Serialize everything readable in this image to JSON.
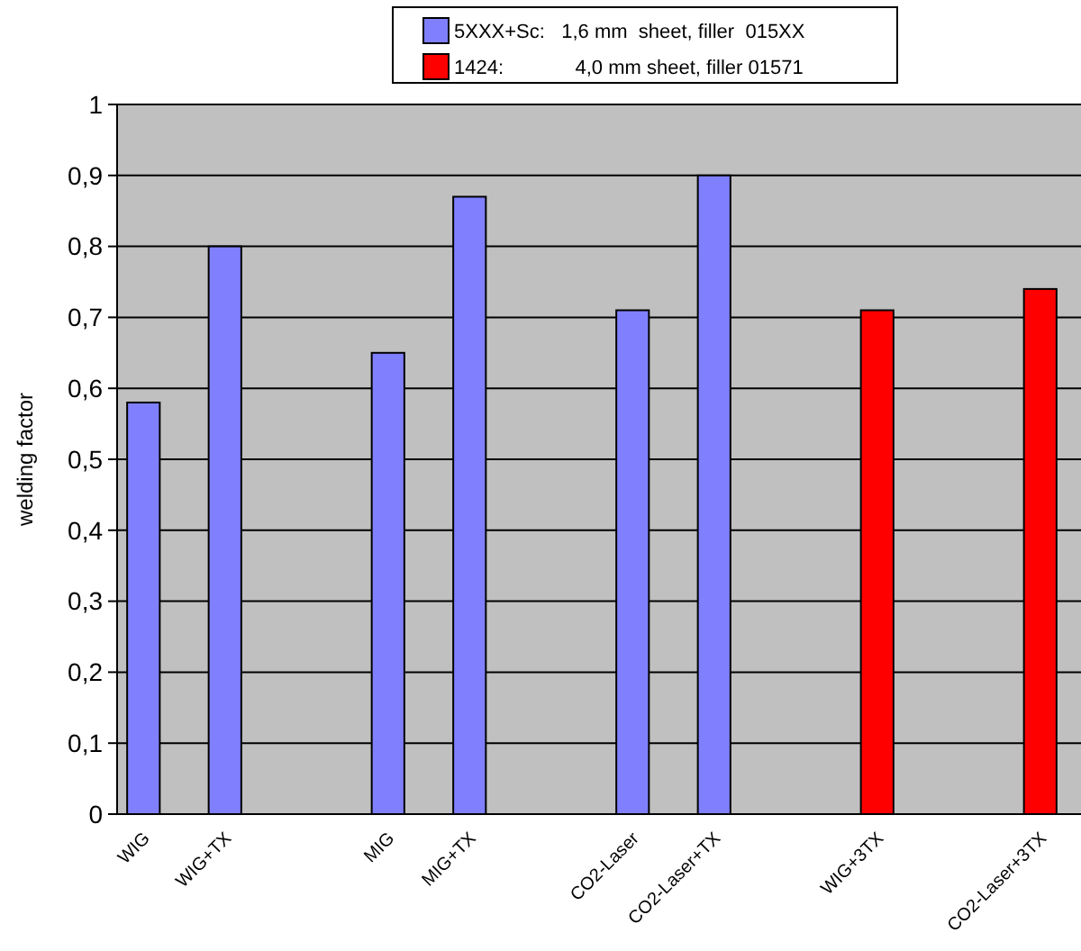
{
  "chart_data": {
    "type": "bar",
    "ylabel": "welding factor",
    "categories": [
      "WIG",
      "WIG+TX",
      null,
      "MIG",
      "MIG+TX",
      null,
      "CO2-Laser",
      "CO2-Laser+TX",
      null,
      "WIG+3TX",
      null,
      "CO2-Laser+3TX"
    ],
    "series": [
      {
        "name": "5XXX+Sc:   1,6 mm  sheet, filler  015XX",
        "color": "#8080ff",
        "values": [
          0.58,
          0.8,
          null,
          0.65,
          0.87,
          null,
          0.71,
          0.9,
          null,
          null,
          null,
          null
        ]
      },
      {
        "name": "1424:             4,0 mm sheet, filler 01571",
        "color": "#ff0000",
        "values": [
          null,
          null,
          null,
          null,
          null,
          null,
          null,
          null,
          null,
          0.71,
          null,
          0.74
        ]
      }
    ],
    "ylim": [
      0,
      1
    ],
    "yticks": [
      {
        "value": 0,
        "label": "0"
      },
      {
        "value": 0.1,
        "label": "0,1"
      },
      {
        "value": 0.2,
        "label": "0,2"
      },
      {
        "value": 0.3,
        "label": "0,3"
      },
      {
        "value": 0.4,
        "label": "0,4"
      },
      {
        "value": 0.5,
        "label": "0,5"
      },
      {
        "value": 0.6,
        "label": "0,6"
      },
      {
        "value": 0.7,
        "label": "0,7"
      },
      {
        "value": 0.8,
        "label": "0,8"
      },
      {
        "value": 0.9,
        "label": "0,9"
      },
      {
        "value": 1,
        "label": "1"
      }
    ],
    "grid": "y",
    "legend": "top"
  }
}
